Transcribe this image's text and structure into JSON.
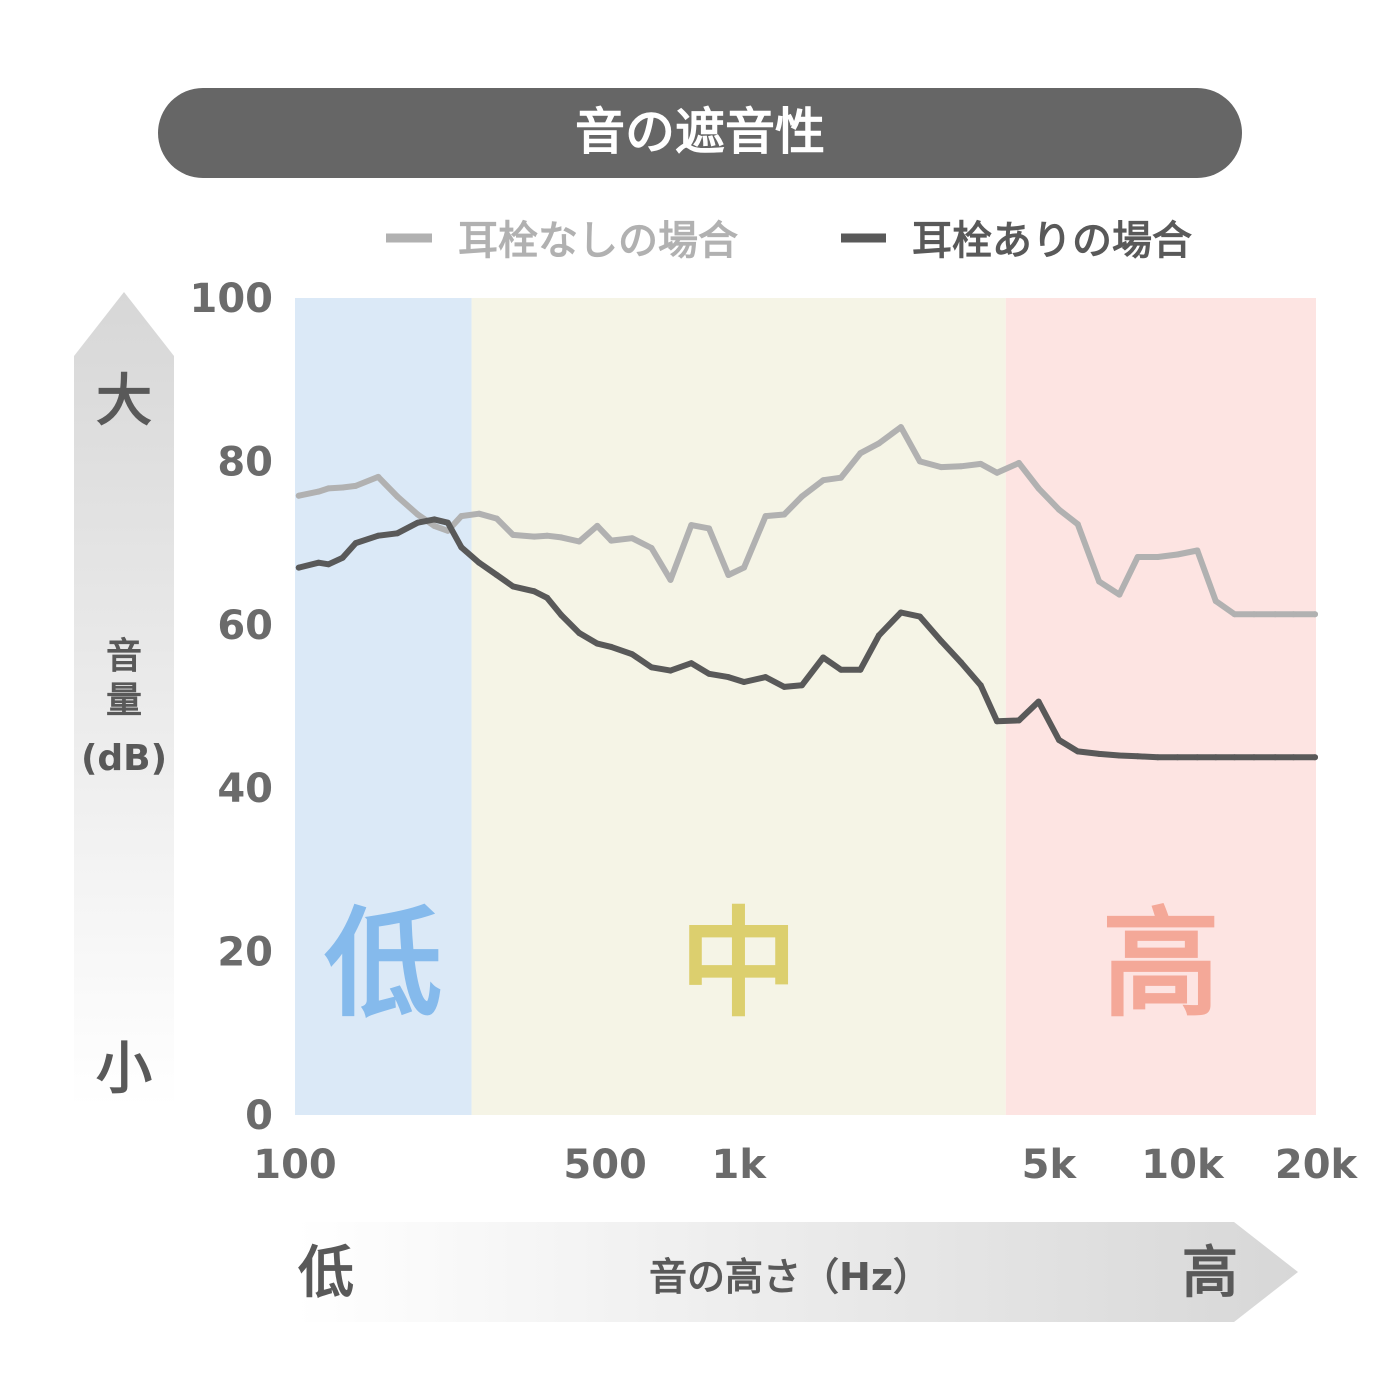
{
  "title": "音の遮音性",
  "legend": [
    {
      "label": "耳栓なしの場合",
      "color": "#b1b1b1"
    },
    {
      "label": "耳栓ありの場合",
      "color": "#595959"
    }
  ],
  "y_axis": {
    "label_lines": [
      "音",
      "量",
      "(dB)"
    ],
    "big_label": "大",
    "small_label": "小"
  },
  "x_axis": {
    "label": "音の高さ（Hz）",
    "low_label": "低",
    "high_label": "高"
  },
  "bands": [
    {
      "label": "低",
      "color": "#dbe9f7",
      "text_color": "#85baec"
    },
    {
      "label": "中",
      "color": "#f5f4e6",
      "text_color": "#dccf6e"
    },
    {
      "label": "高",
      "color": "#fde4e2",
      "text_color": "#f4a898"
    }
  ],
  "colors": {
    "title_bg": "#666666",
    "tick_text": "#6b6b6b",
    "axis_arrow": "#d9d9d9"
  },
  "chart_data": {
    "type": "line",
    "title": "音の遮音性",
    "xlabel": "音の高さ（Hz）",
    "ylabel": "音量(dB)",
    "x_scale": "log",
    "xlim": [
      100,
      20000
    ],
    "ylim": [
      0,
      100
    ],
    "yticks": [
      0,
      20,
      40,
      60,
      80,
      100
    ],
    "xticks": [
      {
        "value": 100,
        "label": "100"
      },
      {
        "value": 500,
        "label": "500"
      },
      {
        "value": 1000,
        "label": "1k"
      },
      {
        "value": 5000,
        "label": "5k"
      },
      {
        "value": 10000,
        "label": "10k"
      },
      {
        "value": 20000,
        "label": "20k"
      }
    ],
    "bands": [
      {
        "label": "低",
        "from": 100,
        "to": 250
      },
      {
        "label": "中",
        "from": 250,
        "to": 4000
      },
      {
        "label": "高",
        "from": 4000,
        "to": 20000
      }
    ],
    "grid": false,
    "legend_position": "top",
    "series": [
      {
        "name": "耳栓なしの場合",
        "color": "#b1b1b1",
        "x": [
          102,
          113,
          119,
          128,
          137,
          154,
          170,
          189,
          206,
          221,
          237,
          260,
          285,
          310,
          346,
          370,
          398,
          437,
          480,
          516,
          575,
          636,
          702,
          782,
          857,
          948,
          1028,
          1150,
          1266,
          1388,
          1550,
          1699,
          1880,
          2070,
          2320,
          2560,
          2860,
          3170,
          3510,
          3820,
          4280,
          4740,
          5270,
          5810,
          6490,
          7210,
          7930,
          8800,
          9750,
          10800,
          11890,
          13100,
          14500,
          16180,
          17800,
          19900
        ],
        "y": [
          75.8,
          76.3,
          76.7,
          76.8,
          77.0,
          78.1,
          75.7,
          73.5,
          72.1,
          71.5,
          73.3,
          73.6,
          73.0,
          71.0,
          70.8,
          70.9,
          70.7,
          70.2,
          72.1,
          70.3,
          70.6,
          69.4,
          65.5,
          72.2,
          71.8,
          66.1,
          67.0,
          73.3,
          73.5,
          75.7,
          77.7,
          78.0,
          81.0,
          82.2,
          84.2,
          80.0,
          79.3,
          79.4,
          79.7,
          78.6,
          79.8,
          76.7,
          74.1,
          72.3,
          65.3,
          63.7,
          68.3,
          68.3,
          68.6,
          69.1,
          62.9,
          61.3,
          61.3,
          61.3,
          61.3,
          61.3
        ]
      },
      {
        "name": "耳栓ありの場合",
        "color": "#595959",
        "x": [
          102,
          113,
          119,
          128,
          137,
          154,
          170,
          189,
          206,
          221,
          237,
          260,
          285,
          310,
          346,
          370,
          398,
          437,
          480,
          516,
          575,
          636,
          702,
          782,
          857,
          948,
          1028,
          1150,
          1266,
          1388,
          1550,
          1699,
          1880,
          2070,
          2320,
          2560,
          2860,
          3170,
          3510,
          3820,
          4280,
          4740,
          5270,
          5810,
          6490,
          7210,
          7930,
          8800,
          9750,
          10800,
          11890,
          13100,
          14500,
          16180,
          17800,
          19900
        ],
        "y": [
          67.0,
          67.6,
          67.4,
          68.2,
          70.0,
          70.9,
          71.2,
          72.5,
          72.9,
          72.5,
          69.5,
          67.6,
          66.1,
          64.7,
          64.1,
          63.3,
          61.2,
          59.0,
          57.7,
          57.3,
          56.4,
          54.8,
          54.4,
          55.3,
          54.0,
          53.6,
          53.0,
          53.6,
          52.4,
          52.6,
          56.0,
          54.5,
          54.5,
          58.7,
          61.5,
          61.0,
          58.0,
          55.4,
          52.6,
          48.2,
          48.3,
          50.6,
          45.9,
          44.5,
          44.2,
          44.0,
          43.9,
          43.8,
          43.8,
          43.8,
          43.8,
          43.8,
          43.8,
          43.8,
          43.8,
          43.8
        ]
      }
    ]
  }
}
